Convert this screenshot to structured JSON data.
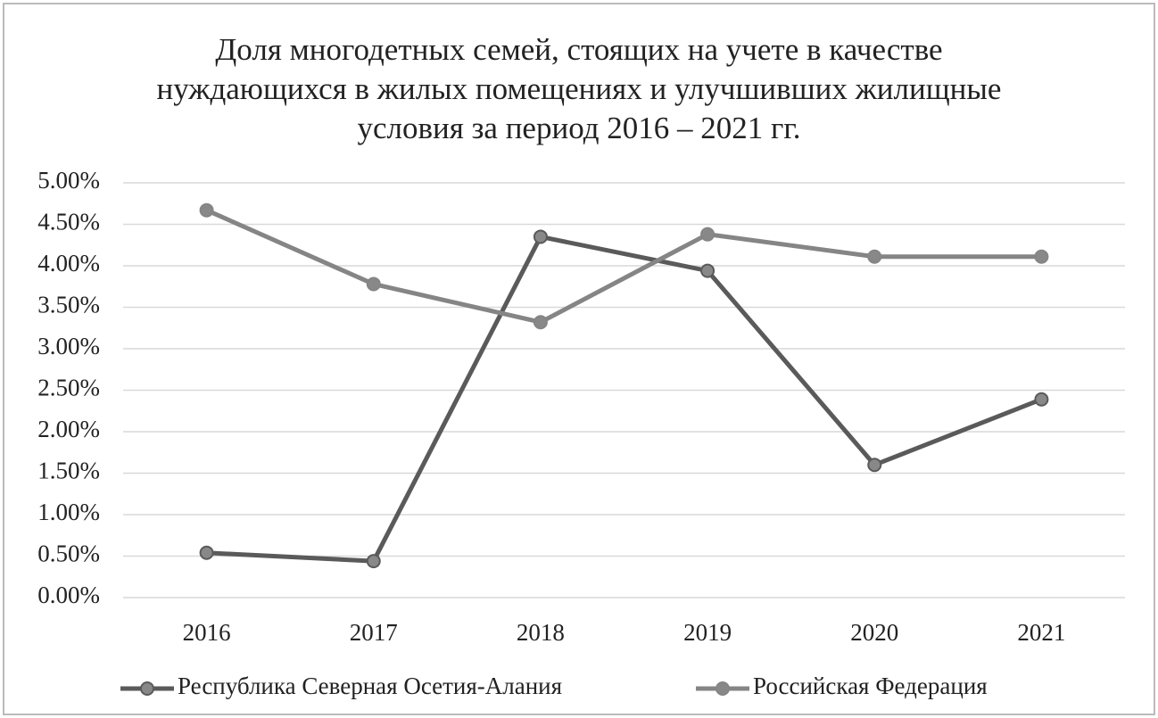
{
  "chart_data": {
    "type": "line",
    "title": "Доля многодетных семей, стоящих на учете в качестве нуждающихся в жилых помещениях и улучшивших жилищные условия за период 2016 – 2021 гг.",
    "categories": [
      "2016",
      "2017",
      "2018",
      "2019",
      "2020",
      "2021"
    ],
    "series": [
      {
        "name": "Республика Северная Осетия-Алания",
        "color": "#5a5a5a",
        "values": [
          0.54,
          0.44,
          4.35,
          3.94,
          1.6,
          2.39
        ]
      },
      {
        "name": "Российская Федерация",
        "color": "#858585",
        "values": [
          4.67,
          3.78,
          3.32,
          4.38,
          4.11,
          4.11
        ]
      }
    ],
    "ylim": [
      0,
      5
    ],
    "yticks": [
      {
        "value": 0,
        "label": "0.00%"
      },
      {
        "value": 0.5,
        "label": "0.50%"
      },
      {
        "value": 1,
        "label": "1.00%"
      },
      {
        "value": 1.5,
        "label": "1.50%"
      },
      {
        "value": 2,
        "label": "2.00%"
      },
      {
        "value": 2.5,
        "label": "2.50%"
      },
      {
        "value": 3,
        "label": "3.00%"
      },
      {
        "value": 3.5,
        "label": "3.50%"
      },
      {
        "value": 4,
        "label": "4.00%"
      },
      {
        "value": 4.5,
        "label": "4.50%"
      },
      {
        "value": 5,
        "label": "5.00%"
      }
    ],
    "grid": true,
    "legend": "bottom"
  }
}
